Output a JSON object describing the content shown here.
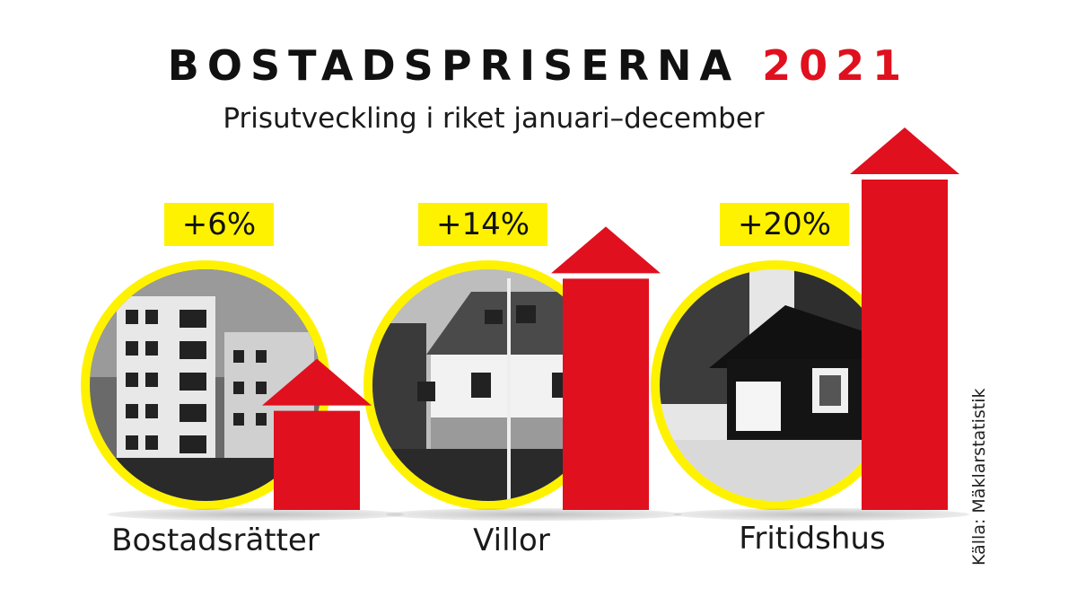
{
  "header": {
    "title": "BOSTADSPRISERNA",
    "year": "2021",
    "subtitle": "Prisutveckling i riket januari–december"
  },
  "source": "Källa: Mäklarstatistik",
  "colors": {
    "accent_red": "#e0101e",
    "highlight_yellow": "#fff200"
  },
  "chart_data": {
    "type": "bar",
    "categories": [
      "Bostadsrätter",
      "Villor",
      "Fritidshus"
    ],
    "values": [
      6,
      14,
      20
    ],
    "value_labels": [
      "+6%",
      "+14%",
      "+20%"
    ],
    "unit": "%",
    "images": [
      "apartment-buildings-photo",
      "villa-house-photo",
      "cottage-photo"
    ]
  }
}
